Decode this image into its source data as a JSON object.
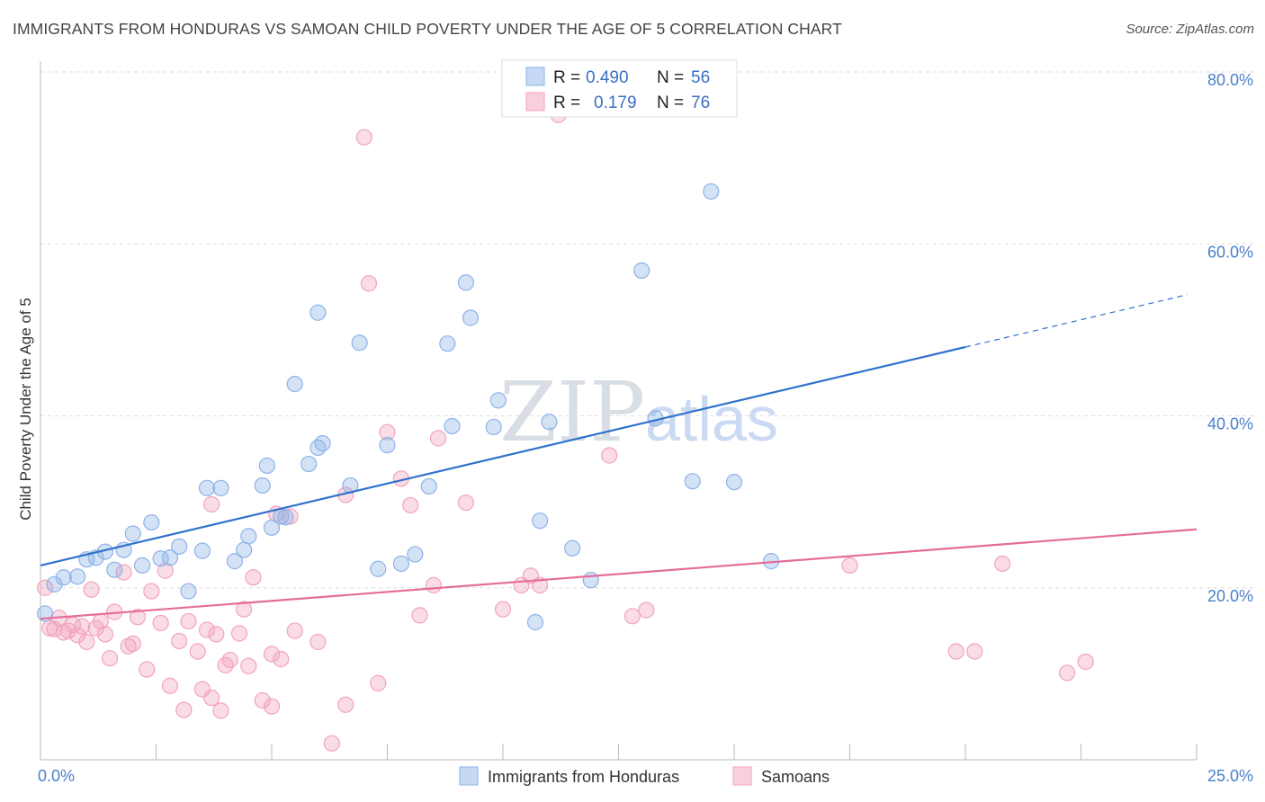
{
  "header": {
    "title": "IMMIGRANTS FROM HONDURAS VS SAMOAN CHILD POVERTY UNDER THE AGE OF 5 CORRELATION CHART",
    "source": "Source: ZipAtlas.com"
  },
  "watermark": {
    "part1": "ZIP",
    "part2": "atlas"
  },
  "chart_data": {
    "type": "scatter",
    "title": "IMMIGRANTS FROM HONDURAS VS SAMOAN CHILD POVERTY UNDER THE AGE OF 5 CORRELATION CHART",
    "xlabel": "",
    "ylabel": "Child Poverty Under the Age of 5",
    "xlim": [
      0,
      25
    ],
    "ylim": [
      0,
      80
    ],
    "x_tick_labels": [
      "0.0%",
      "25.0%"
    ],
    "y_ticks": [
      20,
      40,
      60,
      80
    ],
    "y_tick_labels": [
      "20.0%",
      "40.0%",
      "60.0%",
      "80.0%"
    ],
    "grid": true,
    "legend_position": "top-center",
    "stats": [
      {
        "r_label": "R =",
        "r_value": "0.490",
        "n_label": "N =",
        "n_value": "56"
      },
      {
        "r_label": "R =",
        "r_value": "0.179",
        "n_label": "N =",
        "n_value": "76"
      }
    ],
    "series": [
      {
        "name": "Immigrants from Honduras",
        "color": "#8db3e8",
        "line_color": "#2f72cc",
        "trend": {
          "x0": 0,
          "y0": 22.6,
          "x1": 20,
          "y1": 48.0,
          "dashed_to_x": 24.8
        },
        "points": [
          [
            0.1,
            17.0
          ],
          [
            0.3,
            20.4
          ],
          [
            0.5,
            21.2
          ],
          [
            0.8,
            21.3
          ],
          [
            1.0,
            23.3
          ],
          [
            1.2,
            23.5
          ],
          [
            1.4,
            24.2
          ],
          [
            1.6,
            22.1
          ],
          [
            1.8,
            24.4
          ],
          [
            2.0,
            26.3
          ],
          [
            2.2,
            22.6
          ],
          [
            2.4,
            27.6
          ],
          [
            2.6,
            23.4
          ],
          [
            2.8,
            23.5
          ],
          [
            3.0,
            24.8
          ],
          [
            3.2,
            19.6
          ],
          [
            3.5,
            24.3
          ],
          [
            3.6,
            31.6
          ],
          [
            3.9,
            31.6
          ],
          [
            4.2,
            23.1
          ],
          [
            4.4,
            24.4
          ],
          [
            4.5,
            26.0
          ],
          [
            4.8,
            31.9
          ],
          [
            4.9,
            34.2
          ],
          [
            5.0,
            27.0
          ],
          [
            5.2,
            28.3
          ],
          [
            5.3,
            28.2
          ],
          [
            5.5,
            43.7
          ],
          [
            5.8,
            34.4
          ],
          [
            6.0,
            36.3
          ],
          [
            6.1,
            36.8
          ],
          [
            6.0,
            52.0
          ],
          [
            6.7,
            31.9
          ],
          [
            6.9,
            48.5
          ],
          [
            7.3,
            22.2
          ],
          [
            7.5,
            36.6
          ],
          [
            7.8,
            22.8
          ],
          [
            8.1,
            23.9
          ],
          [
            8.4,
            31.8
          ],
          [
            8.8,
            48.4
          ],
          [
            8.9,
            38.8
          ],
          [
            9.2,
            55.5
          ],
          [
            9.3,
            51.4
          ],
          [
            9.8,
            38.7
          ],
          [
            9.9,
            41.8
          ],
          [
            10.7,
            16.0
          ],
          [
            10.8,
            27.8
          ],
          [
            11.0,
            39.3
          ],
          [
            11.5,
            24.6
          ],
          [
            11.9,
            20.9
          ],
          [
            13.0,
            56.9
          ],
          [
            13.3,
            39.7
          ],
          [
            14.1,
            32.4
          ],
          [
            14.5,
            66.1
          ],
          [
            15.0,
            32.3
          ],
          [
            15.8,
            23.1
          ]
        ]
      },
      {
        "name": "Samoans",
        "color": "#f3a3bd",
        "line_color": "#e46d98",
        "trend": {
          "x0": 0,
          "y0": 16.4,
          "x1": 25,
          "y1": 26.8
        },
        "points": [
          [
            0.1,
            20.0
          ],
          [
            0.2,
            15.3
          ],
          [
            0.3,
            15.2
          ],
          [
            0.4,
            16.5
          ],
          [
            0.5,
            14.8
          ],
          [
            0.6,
            15.0
          ],
          [
            0.7,
            15.7
          ],
          [
            0.8,
            14.5
          ],
          [
            0.9,
            15.5
          ],
          [
            1.0,
            13.7
          ],
          [
            1.1,
            19.8
          ],
          [
            1.2,
            15.3
          ],
          [
            1.3,
            16.1
          ],
          [
            1.4,
            14.6
          ],
          [
            1.5,
            11.8
          ],
          [
            1.6,
            17.2
          ],
          [
            1.8,
            21.8
          ],
          [
            1.9,
            13.2
          ],
          [
            2.0,
            13.5
          ],
          [
            2.1,
            16.6
          ],
          [
            2.3,
            10.5
          ],
          [
            2.4,
            19.6
          ],
          [
            2.6,
            15.9
          ],
          [
            2.7,
            22.0
          ],
          [
            2.8,
            8.6
          ],
          [
            3.0,
            13.8
          ],
          [
            3.1,
            5.8
          ],
          [
            3.2,
            16.1
          ],
          [
            3.4,
            12.6
          ],
          [
            3.5,
            8.2
          ],
          [
            3.6,
            15.1
          ],
          [
            3.7,
            7.2
          ],
          [
            3.8,
            14.6
          ],
          [
            3.7,
            29.7
          ],
          [
            3.9,
            5.7
          ],
          [
            4.0,
            11.0
          ],
          [
            4.1,
            11.6
          ],
          [
            4.3,
            14.7
          ],
          [
            4.4,
            17.5
          ],
          [
            4.5,
            10.9
          ],
          [
            4.6,
            21.2
          ],
          [
            4.8,
            6.9
          ],
          [
            5.0,
            12.3
          ],
          [
            5.0,
            6.2
          ],
          [
            5.1,
            28.6
          ],
          [
            5.2,
            11.7
          ],
          [
            5.4,
            28.3
          ],
          [
            5.5,
            15.0
          ],
          [
            6.0,
            13.7
          ],
          [
            6.3,
            1.9
          ],
          [
            6.6,
            30.8
          ],
          [
            6.6,
            6.4
          ],
          [
            7.0,
            72.4
          ],
          [
            7.1,
            55.4
          ],
          [
            7.3,
            8.9
          ],
          [
            7.5,
            38.1
          ],
          [
            7.8,
            32.7
          ],
          [
            8.0,
            29.6
          ],
          [
            8.2,
            16.8
          ],
          [
            8.5,
            20.3
          ],
          [
            8.6,
            37.4
          ],
          [
            9.2,
            29.9
          ],
          [
            10.0,
            17.5
          ],
          [
            10.4,
            20.3
          ],
          [
            10.6,
            21.4
          ],
          [
            10.8,
            20.3
          ],
          [
            11.2,
            75.0
          ],
          [
            12.3,
            35.4
          ],
          [
            12.8,
            16.7
          ],
          [
            13.1,
            17.4
          ],
          [
            17.5,
            22.6
          ],
          [
            19.8,
            12.6
          ],
          [
            20.2,
            12.6
          ],
          [
            20.8,
            22.8
          ],
          [
            22.2,
            10.1
          ],
          [
            22.6,
            11.4
          ]
        ]
      }
    ]
  }
}
